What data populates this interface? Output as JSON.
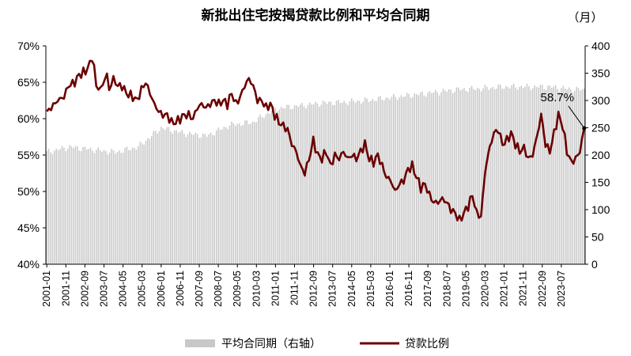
{
  "chart_data": {
    "type": "bar+line",
    "title": "新批出住宅按揭贷款比例和平均合同期",
    "right_unit": "（月）",
    "x_tick_labels": [
      "2001-01",
      "2001-11",
      "2002-09",
      "2003-07",
      "2004-05",
      "2005-03",
      "2006-01",
      "2006-11",
      "2007-09",
      "2008-07",
      "2009-05",
      "2010-03",
      "2011-01",
      "2011-11",
      "2012-09",
      "2013-07",
      "2014-05",
      "2015-03",
      "2016-01",
      "2016-11",
      "2017-09",
      "2018-07",
      "2019-05",
      "2020-03",
      "2021-01",
      "2021-11",
      "2022-09",
      "2023-07"
    ],
    "y_left": {
      "min": 40,
      "max": 70,
      "step": 5,
      "ticks": [
        "40%",
        "45%",
        "50%",
        "55%",
        "60%",
        "65%",
        "70%"
      ]
    },
    "y_right": {
      "min": 0,
      "max": 400,
      "step": 50,
      "ticks": [
        "0",
        "50",
        "100",
        "150",
        "200",
        "250",
        "300",
        "350",
        "400"
      ]
    },
    "legend": {
      "bar_label": "平均合同期（右轴）",
      "line_label": "贷款比例",
      "placement": "bottom-center"
    },
    "annotation": {
      "label": "58.7%",
      "value": 58.7
    },
    "colors": {
      "bar": "#c8c8c8",
      "line": "#6b0000",
      "axis": "#000000"
    },
    "start": "2001-01",
    "months": 283,
    "ratio_anchors": [
      [
        0,
        61.0
      ],
      [
        2,
        61.5
      ],
      [
        5,
        62.5
      ],
      [
        8,
        63.0
      ],
      [
        10,
        64.5
      ],
      [
        13,
        65.0
      ],
      [
        15,
        66.0
      ],
      [
        18,
        66.5
      ],
      [
        20,
        67.5
      ],
      [
        21,
        68.5
      ],
      [
        22,
        67.0
      ],
      [
        23,
        64.5
      ],
      [
        25,
        64.0
      ],
      [
        27,
        65.5
      ],
      [
        28,
        66.0
      ],
      [
        29,
        64.0
      ],
      [
        31,
        65.5
      ],
      [
        33,
        64.5
      ],
      [
        35,
        64.5
      ],
      [
        37,
        63.5
      ],
      [
        40,
        63.0
      ],
      [
        42,
        62.5
      ],
      [
        44,
        64.0
      ],
      [
        46,
        65.0
      ],
      [
        48,
        63.5
      ],
      [
        50,
        62.0
      ],
      [
        52,
        61.0
      ],
      [
        54,
        60.5
      ],
      [
        56,
        60.5
      ],
      [
        58,
        59.5
      ],
      [
        60,
        59.5
      ],
      [
        62,
        60.0
      ],
      [
        64,
        60.5
      ],
      [
        66,
        60.5
      ],
      [
        68,
        60.0
      ],
      [
        70,
        61.5
      ],
      [
        72,
        62.0
      ],
      [
        74,
        61.5
      ],
      [
        76,
        62.0
      ],
      [
        78,
        62.5
      ],
      [
        80,
        62.0
      ],
      [
        82,
        62.5
      ],
      [
        84,
        62.0
      ],
      [
        86,
        63.5
      ],
      [
        88,
        62.0
      ],
      [
        90,
        63.0
      ],
      [
        92,
        64.5
      ],
      [
        94,
        65.5
      ],
      [
        96,
        64.5
      ],
      [
        98,
        62.5
      ],
      [
        100,
        62.5
      ],
      [
        102,
        61.5
      ],
      [
        104,
        62.0
      ],
      [
        106,
        60.5
      ],
      [
        108,
        59.5
      ],
      [
        110,
        59.0
      ],
      [
        112,
        58.5
      ],
      [
        114,
        56.5
      ],
      [
        116,
        55.5
      ],
      [
        118,
        53.5
      ],
      [
        120,
        52.5
      ],
      [
        122,
        54.5
      ],
      [
        124,
        57.0
      ],
      [
        126,
        55.0
      ],
      [
        128,
        54.5
      ],
      [
        130,
        55.5
      ],
      [
        132,
        53.5
      ],
      [
        134,
        55.0
      ],
      [
        136,
        54.5
      ],
      [
        138,
        55.5
      ],
      [
        140,
        54.5
      ],
      [
        142,
        55.0
      ],
      [
        144,
        54.5
      ],
      [
        146,
        55.5
      ],
      [
        148,
        56.5
      ],
      [
        150,
        54.5
      ],
      [
        152,
        54.0
      ],
      [
        154,
        55.0
      ],
      [
        156,
        53.5
      ],
      [
        158,
        52.0
      ],
      [
        160,
        51.5
      ],
      [
        162,
        50.0
      ],
      [
        164,
        51.0
      ],
      [
        166,
        51.5
      ],
      [
        168,
        53.0
      ],
      [
        170,
        53.5
      ],
      [
        172,
        52.0
      ],
      [
        174,
        50.5
      ],
      [
        176,
        51.0
      ],
      [
        178,
        49.5
      ],
      [
        180,
        48.5
      ],
      [
        182,
        48.5
      ],
      [
        184,
        49.0
      ],
      [
        186,
        48.5
      ],
      [
        188,
        47.5
      ],
      [
        190,
        47.0
      ],
      [
        192,
        46.0
      ],
      [
        194,
        47.0
      ],
      [
        196,
        48.0
      ],
      [
        198,
        49.5
      ],
      [
        200,
        47.0
      ],
      [
        202,
        46.5
      ],
      [
        204,
        53.0
      ],
      [
        206,
        56.0
      ],
      [
        208,
        58.0
      ],
      [
        210,
        58.5
      ],
      [
        212,
        56.5
      ],
      [
        214,
        57.0
      ],
      [
        216,
        58.0
      ],
      [
        218,
        56.5
      ],
      [
        220,
        55.5
      ],
      [
        222,
        56.0
      ],
      [
        224,
        54.5
      ],
      [
        226,
        55.0
      ],
      [
        228,
        57.5
      ],
      [
        230,
        60.5
      ],
      [
        232,
        56.5
      ],
      [
        234,
        55.5
      ],
      [
        236,
        58.0
      ],
      [
        238,
        60.5
      ],
      [
        240,
        59.0
      ],
      [
        242,
        55.5
      ],
      [
        244,
        54.0
      ],
      [
        246,
        54.5
      ],
      [
        248,
        55.5
      ],
      [
        250,
        58.7
      ]
    ],
    "ratio_last": 58.7,
    "ratio_range": [
      45.9,
      68.8
    ],
    "contract_anchors": [
      [
        0,
        205
      ],
      [
        12,
        215
      ],
      [
        24,
        210
      ],
      [
        36,
        205
      ],
      [
        48,
        215
      ],
      [
        60,
        250
      ],
      [
        72,
        240
      ],
      [
        84,
        235
      ],
      [
        96,
        255
      ],
      [
        108,
        260
      ],
      [
        120,
        285
      ],
      [
        132,
        290
      ],
      [
        144,
        295
      ],
      [
        156,
        297
      ],
      [
        168,
        300
      ],
      [
        180,
        305
      ],
      [
        192,
        310
      ],
      [
        204,
        315
      ],
      [
        216,
        320
      ],
      [
        228,
        322
      ],
      [
        240,
        325
      ],
      [
        252,
        325
      ],
      [
        264,
        325
      ],
      [
        276,
        320
      ],
      [
        282,
        320
      ]
    ]
  }
}
